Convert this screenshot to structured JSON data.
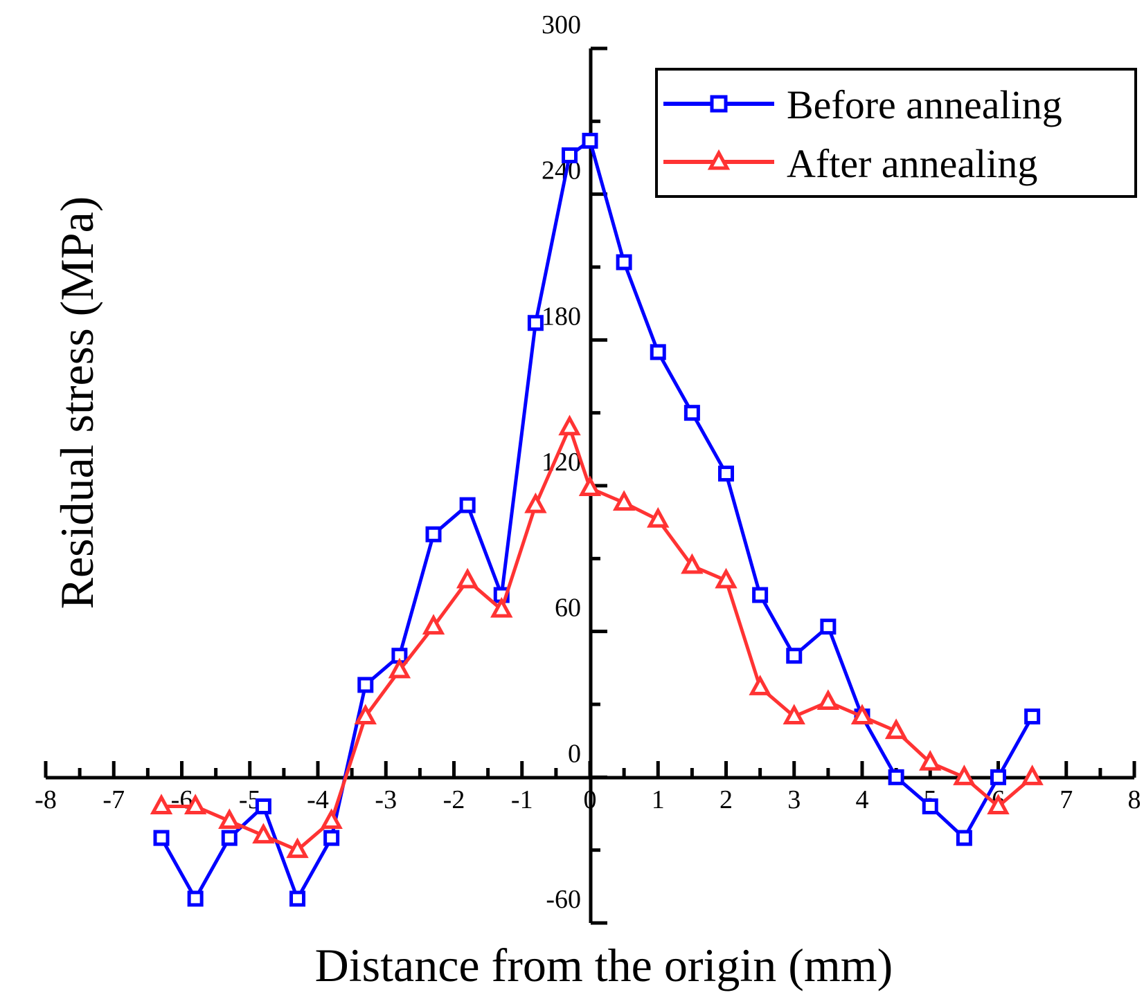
{
  "chart_data": {
    "type": "line",
    "title": "",
    "xlabel": "Distance from the origin (mm)",
    "ylabel": "Residual stress (MPa)",
    "xlim": [
      -8,
      8
    ],
    "ylim": [
      -60,
      300
    ],
    "x_ticks": [
      -8,
      -7,
      -6,
      -5,
      -4,
      -3,
      -2,
      -1,
      0,
      1,
      2,
      3,
      4,
      5,
      6,
      7,
      8
    ],
    "x_tick_labels": [
      "-8",
      "-7",
      "-6",
      "-5",
      "-4",
      "-3",
      "-2",
      "-1",
      "0",
      "1",
      "2",
      "3",
      "4",
      "5",
      "6",
      "7",
      "8"
    ],
    "y_ticks": [
      -60,
      0,
      60,
      120,
      180,
      240,
      300
    ],
    "y_tick_labels": [
      "-60",
      "0",
      "60",
      "120",
      "180",
      "240",
      "300"
    ],
    "grid": false,
    "legend_position": "top-right",
    "series": [
      {
        "name": "Before annealing",
        "color": "#0000ff",
        "marker": "square",
        "x": [
          -6.3,
          -5.8,
          -5.3,
          -4.8,
          -4.3,
          -3.8,
          -3.3,
          -2.8,
          -2.3,
          -1.8,
          -1.3,
          -0.8,
          -0.3,
          0.0,
          0.5,
          1.0,
          1.5,
          2.0,
          2.5,
          3.0,
          3.5,
          4.0,
          4.5,
          5.0,
          5.5,
          6.0,
          6.5
        ],
        "y": [
          -25,
          -50,
          -25,
          -12,
          -50,
          -25,
          38,
          50,
          100,
          112,
          75,
          187,
          256,
          262,
          212,
          175,
          150,
          125,
          75,
          50,
          62,
          25,
          0,
          -12,
          -25,
          0,
          25
        ]
      },
      {
        "name": "After annealing",
        "color": "#ff3333",
        "marker": "triangle",
        "x": [
          -6.3,
          -5.8,
          -5.3,
          -4.8,
          -4.3,
          -3.8,
          -3.3,
          -2.8,
          -2.3,
          -1.8,
          -1.3,
          -0.8,
          -0.3,
          0.0,
          0.5,
          1.0,
          1.5,
          2.0,
          2.5,
          3.0,
          3.5,
          4.0,
          4.5,
          5.0,
          5.5,
          6.0,
          6.5
        ],
        "y": [
          -12,
          -12,
          -18,
          -24,
          -30,
          -18,
          25,
          44,
          62,
          81,
          69,
          112,
          144,
          119,
          113,
          106,
          87,
          81,
          37,
          25,
          31,
          25,
          19,
          6,
          0,
          -12,
          0
        ]
      }
    ]
  }
}
